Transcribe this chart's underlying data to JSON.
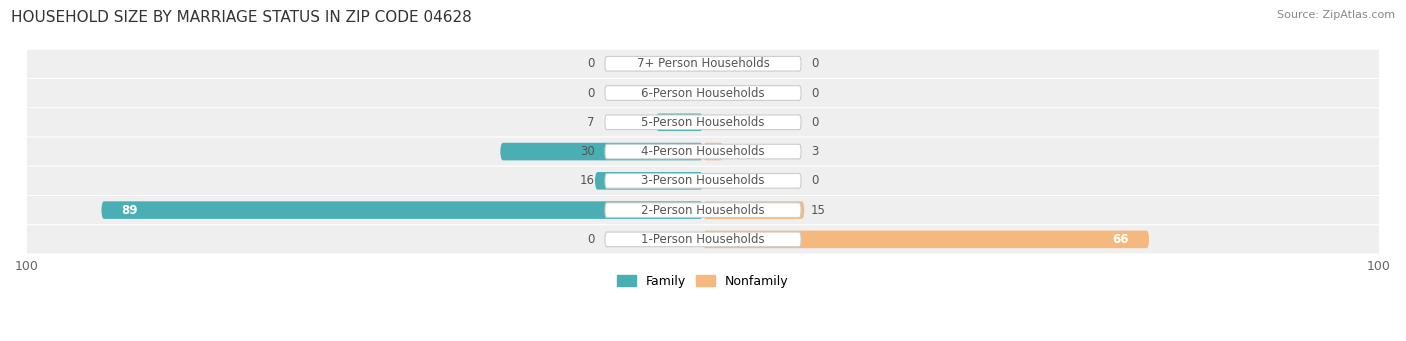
{
  "title": "HOUSEHOLD SIZE BY MARRIAGE STATUS IN ZIP CODE 04628",
  "source": "Source: ZipAtlas.com",
  "categories": [
    "7+ Person Households",
    "6-Person Households",
    "5-Person Households",
    "4-Person Households",
    "3-Person Households",
    "2-Person Households",
    "1-Person Households"
  ],
  "family_values": [
    0,
    0,
    7,
    30,
    16,
    89,
    0
  ],
  "nonfamily_values": [
    0,
    0,
    0,
    3,
    0,
    15,
    66
  ],
  "family_color": "#4AAFB5",
  "nonfamily_color": "#F5B97F",
  "row_bg_color": "#EFEFEF",
  "max_value": 100,
  "label_color": "#555555",
  "title_color": "#333333",
  "legend_family": "Family",
  "legend_nonfamily": "Nonfamily"
}
